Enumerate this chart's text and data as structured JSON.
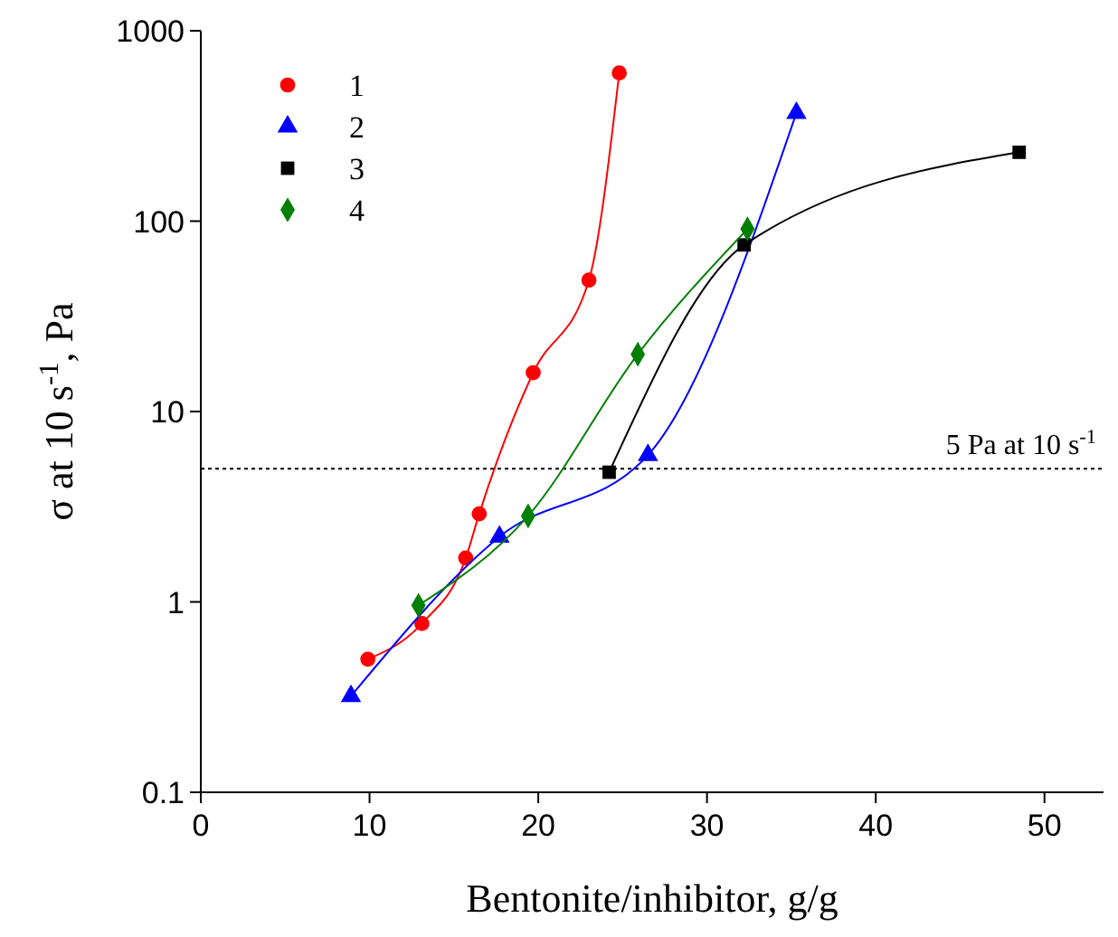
{
  "chart_data": {
    "type": "line",
    "xlabel": "Bentonite/inhibitor, g/g",
    "ylabel": "σ at 10 s$^{-1}$, Pa",
    "log": "y",
    "xlim": [
      0,
      53.5
    ],
    "ylim": [
      0.1,
      1000
    ],
    "xticks": [
      0,
      10,
      20,
      30,
      40,
      50
    ],
    "yticks": [
      0.1,
      1,
      10,
      100,
      1000
    ],
    "grid": false,
    "legend": "top left",
    "line_style": "solid",
    "series": [
      {
        "name": "1",
        "color": "#ff0000",
        "marker": "circle",
        "x": [
          9.9,
          13.1,
          15.7,
          16.5,
          19.7,
          23,
          24.8
        ],
        "values": [
          0.5,
          0.77,
          1.7,
          2.9,
          16,
          49,
          600
        ]
      },
      {
        "name": "2",
        "color": "#0000ff",
        "marker": "triangle",
        "x": [
          8.9,
          17.7,
          26.5,
          35.3
        ],
        "values": [
          0.32,
          2.2,
          5.9,
          370
        ]
      },
      {
        "name": "3",
        "color": "#000000",
        "marker": "square",
        "x": [
          24.2,
          32.2,
          48.5
        ],
        "values": [
          4.8,
          75,
          230
        ]
      },
      {
        "name": "4",
        "color": "#008000",
        "marker": "diamond",
        "x": [
          12.9,
          19.4,
          25.9,
          32.4
        ],
        "values": [
          0.96,
          2.83,
          20,
          91
        ]
      }
    ],
    "ref_lines": [
      {
        "axis": "y",
        "value": 5,
        "label": "5 Pa at 10 s$^{-1}$",
        "line_style": "dotted",
        "color": "#000000"
      }
    ]
  }
}
